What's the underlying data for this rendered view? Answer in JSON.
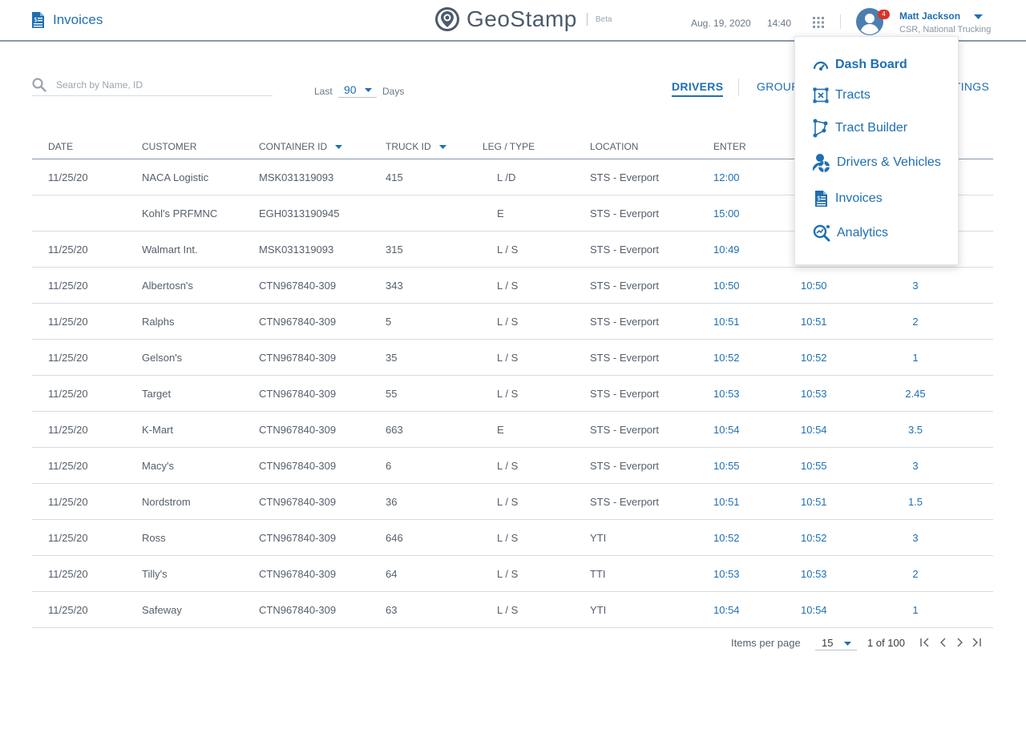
{
  "header": {
    "page_title": "Invoices",
    "brand": "GeoStamp",
    "brand_badge": "Beta",
    "date": "Aug. 19, 2020",
    "time": "14:40",
    "notifications": "4",
    "user_name": "Matt Jackson",
    "user_role": "CSR, National Trucking"
  },
  "toolbar": {
    "search_placeholder": "Search by Name, ID",
    "last_label": "Last",
    "days_value": "90",
    "days_label": "Days",
    "tabs": [
      {
        "label": "DRIVERS",
        "active": true
      },
      {
        "label": "GROUP"
      },
      {
        "label": "TTINGS"
      }
    ]
  },
  "table": {
    "columns": [
      "DATE",
      "CUSTOMER",
      "CONTAINER ID",
      "TRUCK ID",
      "LEG / TYPE",
      "LOCATION",
      "ENTER"
    ],
    "rows": [
      {
        "date": "11/25/20",
        "customer": "NACA Logistic",
        "container": "MSK031319093",
        "truck": "415",
        "leg": "L /D",
        "location": "STS - Everport",
        "enter": "12:00",
        "exit": "",
        "duration": ""
      },
      {
        "date": "",
        "customer": "Kohl's PRFMNC",
        "container": "EGH0313190945",
        "truck": "",
        "leg": "E",
        "location": "STS - Everport",
        "enter": "15:00",
        "exit": "",
        "duration": ""
      },
      {
        "date": "11/25/20",
        "customer": "Walmart Int.",
        "container": "MSK031319093",
        "truck": "315",
        "leg": "L / S",
        "location": "STS - Everport",
        "enter": "10:49",
        "exit": "",
        "duration": ""
      },
      {
        "date": "11/25/20",
        "customer": "Albertosn's",
        "container": "CTN967840-309",
        "truck": "343",
        "leg": "L / S",
        "location": "STS - Everport",
        "enter": "10:50",
        "exit": "10:50",
        "duration": "3"
      },
      {
        "date": "11/25/20",
        "customer": "Ralphs",
        "container": "CTN967840-309",
        "truck": "5",
        "leg": "L / S",
        "location": "STS - Everport",
        "enter": "10:51",
        "exit": "10:51",
        "duration": "2"
      },
      {
        "date": "11/25/20",
        "customer": "Gelson's",
        "container": "CTN967840-309",
        "truck": "35",
        "leg": "L / S",
        "location": "STS - Everport",
        "enter": "10:52",
        "exit": "10:52",
        "duration": "1"
      },
      {
        "date": "11/25/20",
        "customer": "Target",
        "container": "CTN967840-309",
        "truck": "55",
        "leg": "L / S",
        "location": "STS - Everport",
        "enter": "10:53",
        "exit": "10:53",
        "duration": "2.45"
      },
      {
        "date": "11/25/20",
        "customer": "K-Mart",
        "container": "CTN967840-309",
        "truck": "663",
        "leg": "E",
        "location": "STS - Everport",
        "enter": "10:54",
        "exit": "10:54",
        "duration": "3.5"
      },
      {
        "date": "11/25/20",
        "customer": "Macy's",
        "container": "CTN967840-309",
        "truck": "6",
        "leg": "L / S",
        "location": "STS - Everport",
        "enter": "10:55",
        "exit": "10:55",
        "duration": "3"
      },
      {
        "date": "11/25/20",
        "customer": "Nordstrom",
        "container": "CTN967840-309",
        "truck": "36",
        "leg": "L / S",
        "location": "STS - Everport",
        "enter": "10:51",
        "exit": "10:51",
        "duration": "1.5"
      },
      {
        "date": "11/25/20",
        "customer": "Ross",
        "container": "CTN967840-309",
        "truck": "646",
        "leg": "L / S",
        "location": "YTI",
        "enter": "10:52",
        "exit": "10:52",
        "duration": "3"
      },
      {
        "date": "11/25/20",
        "customer": "Tilly's",
        "container": "CTN967840-309",
        "truck": "64",
        "leg": "L / S",
        "location": "TTI",
        "enter": "10:53",
        "exit": "10:53",
        "duration": "2"
      },
      {
        "date": "11/25/20",
        "customer": "Safeway",
        "container": "CTN967840-309",
        "truck": "63",
        "leg": "L / S",
        "location": "YTI",
        "enter": "10:54",
        "exit": "10:54",
        "duration": "1"
      }
    ]
  },
  "pagination": {
    "items_label": "Items per page",
    "items_value": "15",
    "range": "1 of 100"
  },
  "menu": {
    "items": [
      {
        "label": "Dash Board",
        "icon": "dashboard-icon",
        "active": true
      },
      {
        "label": "Tracts",
        "icon": "tracts-icon"
      },
      {
        "label": "Tract Builder",
        "icon": "tract-builder-icon"
      },
      {
        "label": "Drivers & Vehicles",
        "icon": "drivers-vehicles-icon"
      },
      {
        "label": "Invoices",
        "icon": "invoice-icon"
      },
      {
        "label": "Analytics",
        "icon": "analytics-icon"
      }
    ]
  },
  "colors": {
    "accent": "#1f6fb2",
    "text": "#555f6b",
    "notification": "#d8342b",
    "divider": "#d6dce2"
  }
}
